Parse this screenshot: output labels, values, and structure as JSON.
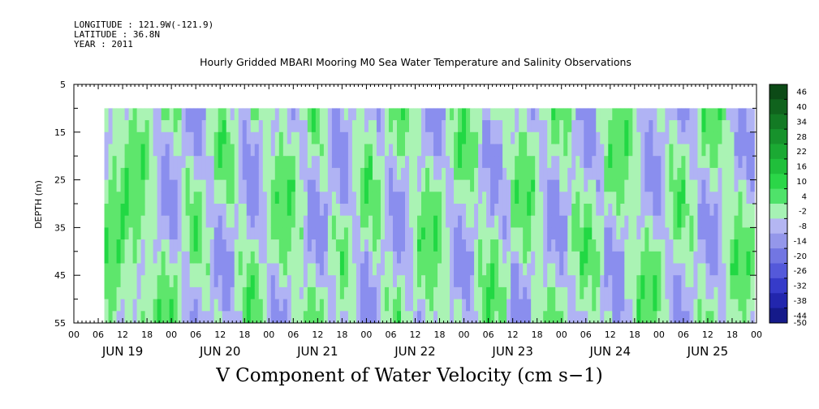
{
  "header": {
    "longitude": "LONGITUDE : 121.9W(-121.9)",
    "latitude": "LATITUDE : 36.8N",
    "year": "YEAR : 2011",
    "title": "Hourly Gridded MBARI Mooring M0 Sea Water Temperature and Salinity Observations"
  },
  "chart_data": {
    "type": "heatmap",
    "title": "V Component of Water Velocity (cm s−1)",
    "ylabel": "DEPTH (m)",
    "xlabel": "",
    "ylim": [
      55,
      5
    ],
    "yticks": [
      5,
      15,
      25,
      35,
      45,
      55
    ],
    "hour_ticks": [
      "00",
      "06",
      "12",
      "18",
      "00",
      "06",
      "12",
      "18",
      "00",
      "06",
      "12",
      "18",
      "00",
      "06",
      "12",
      "18",
      "00",
      "06",
      "12",
      "18",
      "00",
      "06",
      "12",
      "18",
      "00",
      "06",
      "12",
      "18",
      "00"
    ],
    "date_labels": [
      "JUN 19",
      "JUN 20",
      "JUN 21",
      "JUN 22",
      "JUN 23",
      "JUN 24",
      "JUN 25"
    ],
    "data_depth_range": [
      10,
      55
    ],
    "data_start_hour_offset": 7.5,
    "colorbar": {
      "levels": [
        "46",
        "40",
        "34",
        "28",
        "22",
        "16",
        "10",
        "4",
        "-2",
        "-8",
        "-14",
        "-20",
        "-26",
        "-32",
        "-38",
        "-44",
        "-50"
      ],
      "colors": [
        "#0c4a16",
        "#10631d",
        "#137a24",
        "#17922c",
        "#1ba933",
        "#20bf3b",
        "#2bd648",
        "#4fe26a",
        "#a6f2b4",
        "#b4b6f2",
        "#9497ea",
        "#7276e2",
        "#5459da",
        "#363bc9",
        "#2226ad",
        "#151a8a",
        "#0c1066"
      ]
    },
    "field_colors": {
      "strong_north": "#22d844",
      "north": "#5ee66c",
      "weak_north": "#aaf3b4",
      "weak_south": "#b0b3f4",
      "south": "#8a8eee"
    }
  },
  "colors": {
    "axis": "#000000",
    "background": "#ffffff"
  }
}
